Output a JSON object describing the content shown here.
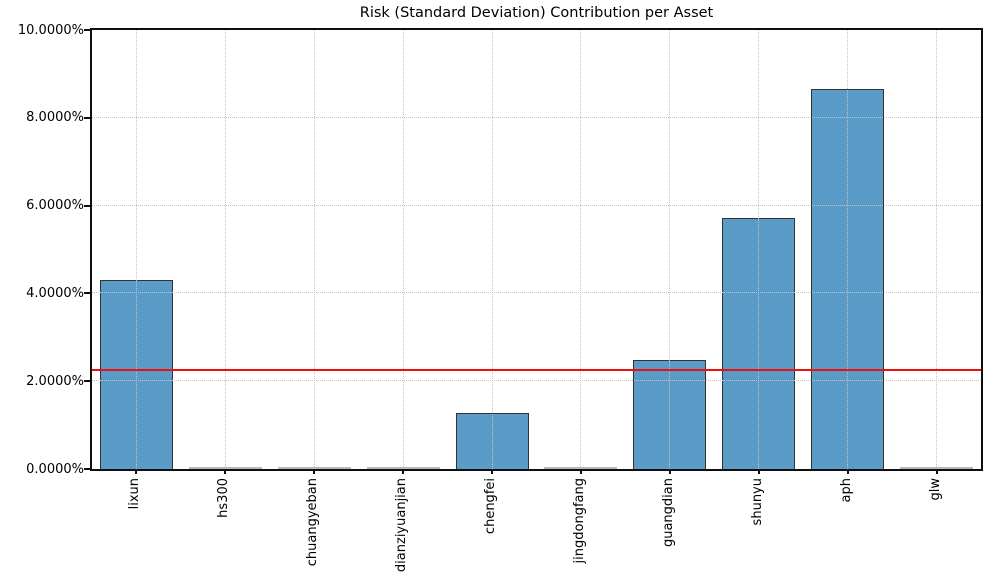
{
  "chart_data": {
    "type": "bar",
    "title": "Risk (Standard Deviation) Contribution per Asset",
    "xlabel": "",
    "ylabel": "",
    "categories": [
      "lixun",
      "hs300",
      "chuangyeban",
      "dianziyuanjian",
      "chengfei",
      "jingdongfang",
      "guangdian",
      "shunyu",
      "aph",
      "glw"
    ],
    "values_pct": [
      4.3,
      0.01,
      0.01,
      0.01,
      1.28,
      0.01,
      2.48,
      5.72,
      8.65,
      0.01
    ],
    "ylim_pct": [
      0,
      10
    ],
    "ytick_labels": [
      "0.0000%",
      "2.0000%",
      "4.0000%",
      "6.0000%",
      "8.0000%",
      "10.0000%"
    ],
    "reference_line": {
      "value_pct": 2.25,
      "color": "#f10e0e"
    },
    "grid": true,
    "legend": "none",
    "colors": {
      "bar_fill": "#5b9bc8",
      "bar_edge": "#333333",
      "gridline": "#c3c3c3",
      "spine": "#0f0f0f",
      "background": "#ffffff"
    }
  }
}
